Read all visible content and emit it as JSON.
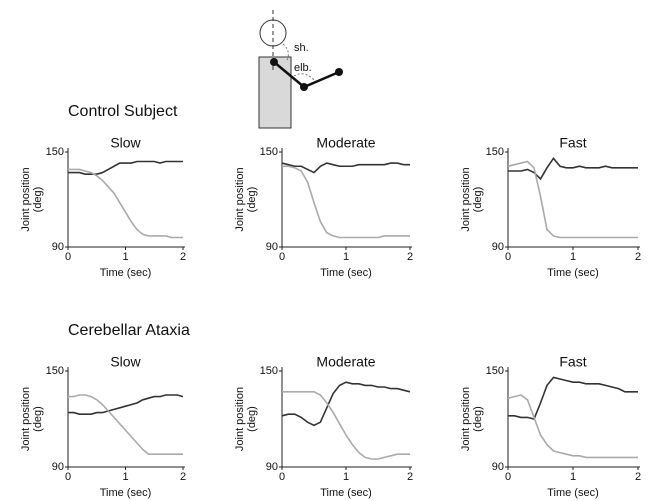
{
  "figure": {
    "diagram_labels": [
      "sh.",
      "elb."
    ],
    "groups": [
      "Control Subject",
      "Cerebellar Ataxia"
    ]
  },
  "chart_data": [
    {
      "type": "line",
      "title": "Slow",
      "xlabel": "Time (sec)",
      "ylabel": [
        "Joint position",
        "(deg)"
      ],
      "xlim": [
        0,
        2
      ],
      "ylim": [
        90,
        150
      ],
      "xticks": [
        0,
        1,
        2
      ],
      "yticks": [
        90,
        150
      ],
      "x": [
        0,
        0.1,
        0.2,
        0.3,
        0.4,
        0.5,
        0.6,
        0.7,
        0.8,
        0.9,
        1,
        1.1,
        1.2,
        1.3,
        1.4,
        1.5,
        1.6,
        1.7,
        1.8,
        1.9,
        2
      ],
      "series": [
        {
          "color": "#333333",
          "values": [
            137,
            137,
            137,
            136,
            136,
            136,
            137,
            139,
            141,
            143,
            143,
            143,
            144,
            144,
            144,
            144,
            143,
            144,
            144,
            144,
            144
          ]
        },
        {
          "color": "#aaaaaa",
          "values": [
            139,
            139,
            139,
            138,
            137,
            135,
            132,
            128,
            124,
            118,
            112,
            106,
            101,
            98,
            97,
            97,
            97,
            97,
            96,
            96,
            96
          ]
        }
      ]
    },
    {
      "type": "line",
      "title": "Moderate",
      "xlabel": "Time (sec)",
      "ylabel": [
        "Joint position",
        "(deg)"
      ],
      "xlim": [
        0,
        2
      ],
      "ylim": [
        90,
        150
      ],
      "xticks": [
        0,
        1,
        2
      ],
      "yticks": [
        90,
        150
      ],
      "x": [
        0,
        0.1,
        0.2,
        0.3,
        0.4,
        0.5,
        0.6,
        0.7,
        0.8,
        0.9,
        1,
        1.1,
        1.2,
        1.3,
        1.4,
        1.5,
        1.6,
        1.7,
        1.8,
        1.9,
        2
      ],
      "series": [
        {
          "color": "#333333",
          "values": [
            143,
            142,
            141,
            141,
            139,
            137,
            141,
            143,
            142,
            141,
            141,
            141,
            142,
            142,
            142,
            142,
            142,
            143,
            143,
            142,
            142
          ]
        },
        {
          "color": "#aaaaaa",
          "values": [
            141,
            141,
            140,
            138,
            131,
            118,
            106,
            99,
            97,
            96,
            96,
            96,
            96,
            96,
            96,
            96,
            97,
            97,
            97,
            97,
            97
          ]
        }
      ]
    },
    {
      "type": "line",
      "title": "Fast",
      "xlabel": "Time (sec)",
      "ylabel": [
        "Joint position",
        "(deg)"
      ],
      "xlim": [
        0,
        2
      ],
      "ylim": [
        90,
        150
      ],
      "xticks": [
        0,
        1,
        2
      ],
      "yticks": [
        90,
        150
      ],
      "x": [
        0,
        0.1,
        0.2,
        0.3,
        0.4,
        0.5,
        0.6,
        0.7,
        0.8,
        0.9,
        1,
        1.1,
        1.2,
        1.3,
        1.4,
        1.5,
        1.6,
        1.7,
        1.8,
        1.9,
        2
      ],
      "series": [
        {
          "color": "#333333",
          "values": [
            138,
            138,
            138,
            139,
            137,
            133,
            140,
            146,
            141,
            140,
            140,
            141,
            140,
            140,
            140,
            141,
            140,
            140,
            140,
            140,
            140
          ]
        },
        {
          "color": "#aaaaaa",
          "values": [
            141,
            142,
            143,
            144,
            140,
            122,
            101,
            97,
            96,
            96,
            96,
            96,
            96,
            96,
            96,
            96,
            96,
            96,
            96,
            96,
            96
          ]
        }
      ]
    },
    {
      "type": "line",
      "title": "Slow",
      "xlabel": "Time (sec)",
      "ylabel": [
        "Joint position",
        "(deg)"
      ],
      "xlim": [
        0,
        2
      ],
      "ylim": [
        90,
        150
      ],
      "xticks": [
        0,
        1,
        2
      ],
      "yticks": [
        90,
        150
      ],
      "x": [
        0,
        0.1,
        0.2,
        0.3,
        0.4,
        0.5,
        0.6,
        0.7,
        0.8,
        0.9,
        1,
        1.1,
        1.2,
        1.3,
        1.4,
        1.5,
        1.6,
        1.7,
        1.8,
        1.9,
        2
      ],
      "series": [
        {
          "color": "#333333",
          "values": [
            124,
            124,
            123,
            123,
            123,
            124,
            124,
            125,
            126,
            127,
            128,
            129,
            130,
            132,
            133,
            134,
            134,
            135,
            135,
            135,
            134
          ]
        },
        {
          "color": "#aaaaaa",
          "values": [
            134,
            134,
            135,
            135,
            134,
            132,
            129,
            125,
            121,
            117,
            113,
            109,
            105,
            101,
            98,
            98,
            98,
            98,
            98,
            98,
            98
          ]
        }
      ]
    },
    {
      "type": "line",
      "title": "Moderate",
      "xlabel": "Time (sec)",
      "ylabel": [
        "Joint position",
        "(deg)"
      ],
      "xlim": [
        0,
        2
      ],
      "ylim": [
        90,
        150
      ],
      "xticks": [
        0,
        1,
        2
      ],
      "yticks": [
        90,
        150
      ],
      "x": [
        0,
        0.1,
        0.2,
        0.3,
        0.4,
        0.5,
        0.6,
        0.7,
        0.8,
        0.9,
        1,
        1.1,
        1.2,
        1.3,
        1.4,
        1.5,
        1.6,
        1.7,
        1.8,
        1.9,
        2
      ],
      "series": [
        {
          "color": "#333333",
          "values": [
            122,
            123,
            123,
            121,
            118,
            116,
            118,
            127,
            136,
            141,
            143,
            142,
            142,
            141,
            141,
            140,
            140,
            139,
            139,
            138,
            137
          ]
        },
        {
          "color": "#aaaaaa",
          "values": [
            137,
            137,
            137,
            137,
            137,
            137,
            135,
            130,
            124,
            117,
            110,
            104,
            99,
            96,
            95,
            95,
            96,
            97,
            98,
            98,
            98
          ]
        }
      ]
    },
    {
      "type": "line",
      "title": "Fast",
      "xlabel": "Time (sec)",
      "ylabel": [
        "Joint position",
        "(deg)"
      ],
      "xlim": [
        0,
        2
      ],
      "ylim": [
        90,
        150
      ],
      "xticks": [
        0,
        1,
        2
      ],
      "yticks": [
        90,
        150
      ],
      "x": [
        0,
        0.1,
        0.2,
        0.3,
        0.4,
        0.5,
        0.6,
        0.7,
        0.8,
        0.9,
        1,
        1.1,
        1.2,
        1.3,
        1.4,
        1.5,
        1.6,
        1.7,
        1.8,
        1.9,
        2
      ],
      "series": [
        {
          "color": "#333333",
          "values": [
            122,
            122,
            121,
            121,
            120,
            130,
            141,
            146,
            145,
            144,
            143,
            143,
            142,
            142,
            142,
            141,
            140,
            139,
            137,
            137,
            137
          ]
        },
        {
          "color": "#aaaaaa",
          "values": [
            133,
            134,
            135,
            132,
            121,
            110,
            104,
            100,
            99,
            98,
            97,
            97,
            96,
            96,
            96,
            96,
            96,
            96,
            96,
            96,
            96
          ]
        }
      ]
    }
  ]
}
